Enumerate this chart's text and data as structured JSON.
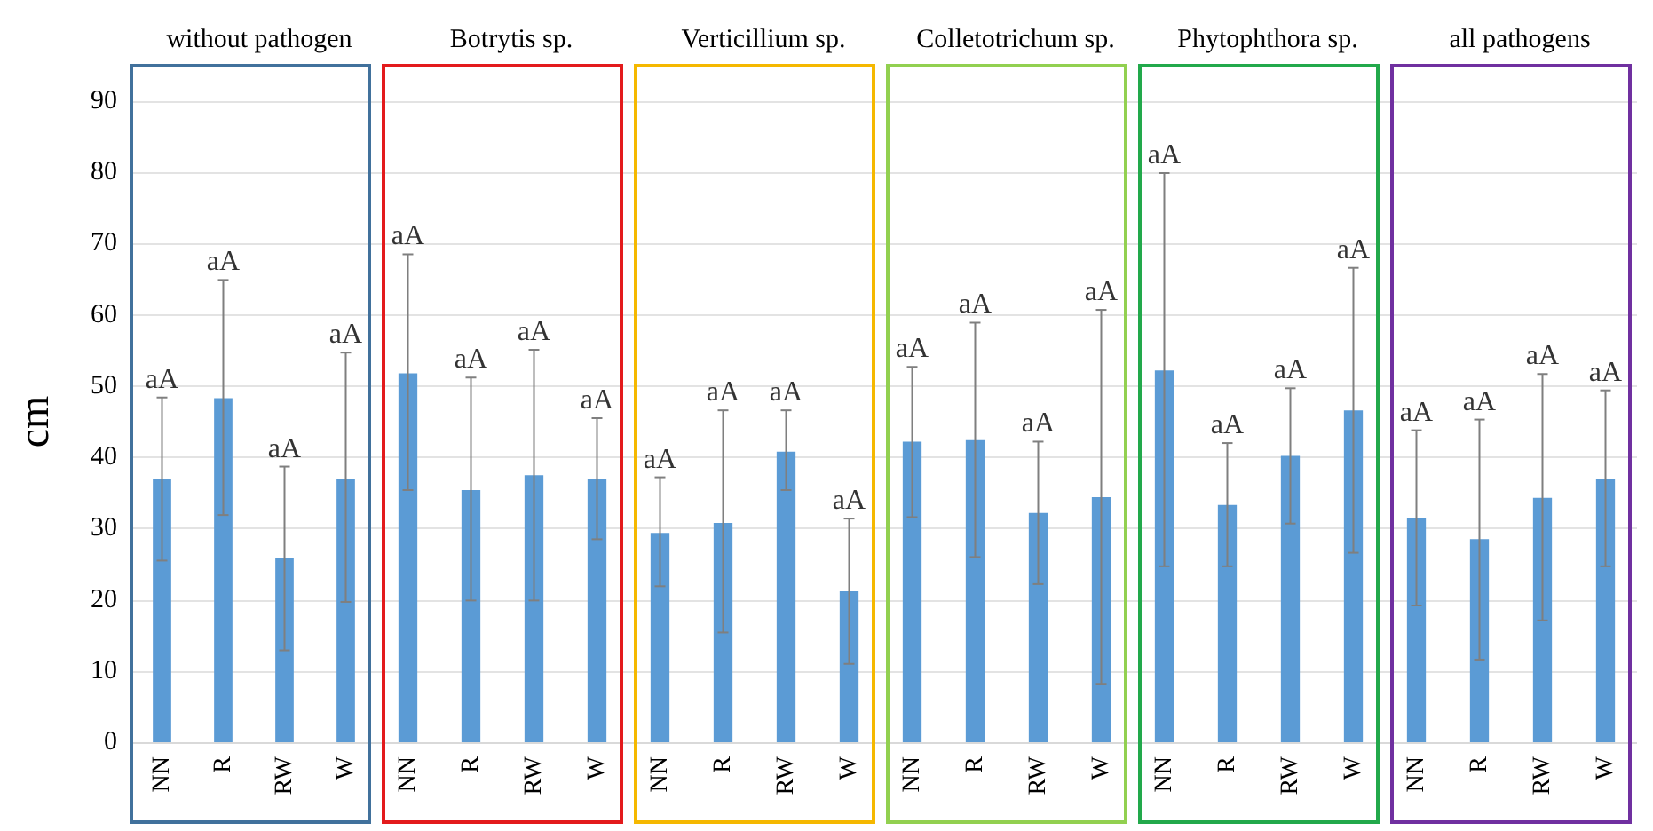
{
  "chart_data": [
    {
      "type": "bar",
      "title": "without pathogen",
      "ylabel": "cm",
      "categories": [
        "NN",
        "R",
        "RW",
        "W"
      ],
      "values": [
        37,
        48.3,
        25.8,
        37
      ],
      "color": "#5b9bd5",
      "errors": [
        [
          25.5,
          48.4
        ],
        [
          31.9,
          64.9
        ],
        [
          12.9,
          38.7
        ],
        [
          19.7,
          54.7
        ]
      ],
      "ylim": [
        0,
        90
      ],
      "yticks": [
        0,
        10,
        20,
        30,
        40,
        50,
        60,
        70,
        80,
        90
      ],
      "grid": "y",
      "annotations": [
        {
          "text": "aA",
          "x": "NN",
          "y": 48.4
        },
        {
          "text": "aA",
          "x": "R",
          "y": 64.9
        },
        {
          "text": "aA",
          "x": "RW",
          "y": 38.7
        },
        {
          "text": "aA",
          "x": "W",
          "y": 54.7
        }
      ]
    },
    {
      "type": "bar",
      "title": "Botrytis sp.",
      "categories": [
        "NN",
        "R",
        "RW",
        "W"
      ],
      "values": [
        51.8,
        35.4,
        37.5,
        36.9
      ],
      "color": "#5b9bd5",
      "errors": [
        [
          35.4,
          68.5
        ],
        [
          19.9,
          51.2
        ],
        [
          19.9,
          55.1
        ],
        [
          28.5,
          45.5
        ]
      ],
      "ylim": [
        0,
        90
      ],
      "yticks": [
        0,
        10,
        20,
        30,
        40,
        50,
        60,
        70,
        80,
        90
      ],
      "grid": "y",
      "tick_labels": "x",
      "annotations": [
        {
          "text": "aA",
          "x": "NN",
          "y": 68.5
        },
        {
          "text": "aA",
          "x": "R",
          "y": 51.2
        },
        {
          "text": "aA",
          "x": "RW",
          "y": 55.1
        },
        {
          "text": "aA",
          "x": "W",
          "y": 45.5
        }
      ]
    },
    {
      "type": "bar",
      "title": "Verticillium sp.",
      "categories": [
        "NN",
        "R",
        "RW",
        "W"
      ],
      "values": [
        29.4,
        30.8,
        40.8,
        21.2
      ],
      "color": "#5b9bd5",
      "errors": [
        [
          21.9,
          37.2
        ],
        [
          15.4,
          46.6
        ],
        [
          35.4,
          46.6
        ],
        [
          11,
          31.4
        ]
      ],
      "ylim": [
        0,
        90
      ],
      "yticks": [
        0,
        10,
        20,
        30,
        40,
        50,
        60,
        70,
        80,
        90
      ],
      "grid": "y",
      "tick_labels": "x",
      "annotations": [
        {
          "text": "aA",
          "x": "NN",
          "y": 37.2
        },
        {
          "text": "aA",
          "x": "R",
          "y": 46.6
        },
        {
          "text": "aA",
          "x": "RW",
          "y": 46.6
        },
        {
          "text": "aA",
          "x": "W",
          "y": 31.4
        }
      ]
    },
    {
      "type": "bar",
      "title": "Colletotrichum sp.",
      "categories": [
        "NN",
        "R",
        "RW",
        "W"
      ],
      "values": [
        42.2,
        42.4,
        32.2,
        34.4
      ],
      "color": "#5b9bd5",
      "errors": [
        [
          31.6,
          52.7
        ],
        [
          26,
          58.9
        ],
        [
          22.2,
          42.2
        ],
        [
          8.2,
          60.7
        ]
      ],
      "ylim": [
        0,
        90
      ],
      "yticks": [
        0,
        10,
        20,
        30,
        40,
        50,
        60,
        70,
        80,
        90
      ],
      "grid": "y",
      "tick_labels": "x",
      "annotations": [
        {
          "text": "aA",
          "x": "NN",
          "y": 52.7
        },
        {
          "text": "aA",
          "x": "R",
          "y": 58.9
        },
        {
          "text": "aA",
          "x": "RW",
          "y": 42.2
        },
        {
          "text": "aA",
          "x": "W",
          "y": 60.7
        }
      ]
    },
    {
      "type": "bar",
      "title": "Phytophthora sp.",
      "categories": [
        "NN",
        "R",
        "RW",
        "W"
      ],
      "values": [
        52.2,
        33.3,
        40.2,
        46.6
      ],
      "color": "#5b9bd5",
      "errors": [
        [
          24.7,
          79.9
        ],
        [
          24.7,
          42
        ],
        [
          30.7,
          49.7
        ],
        [
          26.6,
          66.6
        ]
      ],
      "ylim": [
        0,
        90
      ],
      "yticks": [
        0,
        10,
        20,
        30,
        40,
        50,
        60,
        70,
        80,
        90
      ],
      "grid": "y",
      "tick_labels": "x",
      "annotations": [
        {
          "text": "aA",
          "x": "NN",
          "y": 79.9
        },
        {
          "text": "aA",
          "x": "R",
          "y": 42
        },
        {
          "text": "aA",
          "x": "RW",
          "y": 49.7
        },
        {
          "text": "aA",
          "x": "W",
          "y": 66.6
        }
      ]
    },
    {
      "type": "bar",
      "title": "all pathogens",
      "categories": [
        "NN",
        "R",
        "RW",
        "W"
      ],
      "values": [
        31.4,
        28.5,
        34.3,
        36.9
      ],
      "color": "#5b9bd5",
      "errors": [
        [
          19.2,
          43.8
        ],
        [
          11.6,
          45.3
        ],
        [
          17.1,
          51.7
        ],
        [
          24.7,
          49.4
        ]
      ],
      "ylim": [
        0,
        90
      ],
      "yticks": [
        0,
        10,
        20,
        30,
        40,
        50,
        60,
        70,
        80,
        90
      ],
      "grid": "y",
      "tick_labels": "x",
      "annotations": [
        {
          "text": "aA",
          "x": "NN",
          "y": 43.8
        },
        {
          "text": "aA",
          "x": "R",
          "y": 45.3
        },
        {
          "text": "aA",
          "x": "RW",
          "y": 51.7
        },
        {
          "text": "aA",
          "x": "W",
          "y": 49.4
        }
      ]
    }
  ]
}
